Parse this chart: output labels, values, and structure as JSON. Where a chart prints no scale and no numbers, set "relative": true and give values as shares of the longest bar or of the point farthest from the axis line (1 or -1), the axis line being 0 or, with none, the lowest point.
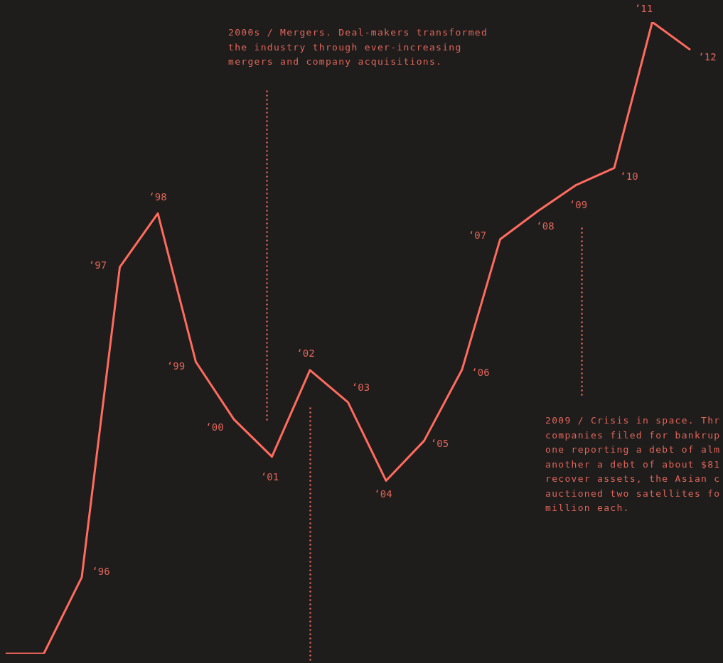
{
  "chart_data": {
    "type": "line",
    "relative": true,
    "categories": [
      null,
      null,
      null,
      null,
      null,
      null,
      null,
      null,
      null,
      null,
      null,
      null,
      null,
      null,
      null,
      null,
      null,
      null,
      null
    ],
    "series": [
      {
        "color": "#ff6b5e",
        "values": [
          0,
          0,
          0.121,
          0.612,
          0.697,
          0.462,
          0.371,
          0.312,
          0.449,
          0.398,
          0.274,
          0.337,
          0.45,
          0.656,
          0.701,
          0.742,
          0.769,
          1,
          0.956
        ]
      }
    ],
    "annotations": [
      "2000s / Mergers. Deal-makers transformed the industry through ever-increasing mergers and company acquisitions.",
      "2009 / Crisis in space. Thr companies filed for bankrup one reporting a debt of alm another a debt of about $81 recover assets, the Asian c auctioned two satellites fo million each.",
      "‘96",
      "‘97",
      "‘98",
      "‘99",
      "‘00",
      "‘01",
      "‘02",
      "‘03",
      "‘04",
      "‘05",
      "‘06",
      "‘07",
      "‘08",
      "‘09",
      "‘10",
      "‘11",
      "‘12"
    ],
    "legend": false,
    "marker": "none",
    "line_style": "solid"
  }
}
